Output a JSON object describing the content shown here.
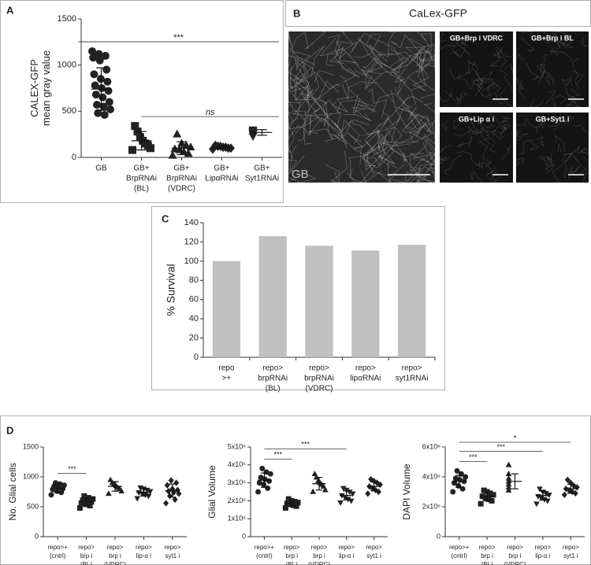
{
  "image_panel": {
    "panel": "B",
    "title": "CaLex-GFP",
    "images": [
      "GB",
      "GB+Brp i VDRC",
      "GB+Brp i BL",
      "GB+Lip α i",
      "GB+Syt1 i"
    ]
  },
  "chart_data": [
    {
      "panel": "A",
      "type": "dotplot",
      "ylabel": [
        "CALEX-GFP",
        "mean gray value"
      ],
      "ylim": [
        0,
        1500
      ],
      "yticks": [
        0,
        500,
        1000,
        1500
      ],
      "color": "#222222",
      "groups": [
        {
          "label": [
            "GB"
          ],
          "marker": "circle",
          "values": [
            1150,
            1120,
            1100,
            1080,
            1050,
            950,
            900,
            850,
            820,
            780,
            750,
            720,
            680,
            650,
            600,
            570,
            550,
            520,
            480,
            460
          ],
          "mean": 740,
          "sd": 230
        },
        {
          "label": [
            "GB+",
            "BrpRNAi",
            "(BL)"
          ],
          "marker": "square",
          "values": [
            80,
            100,
            130,
            150,
            180,
            220,
            280,
            340
          ],
          "mean": 180,
          "sd": 100
        },
        {
          "label": [
            "GB+",
            "BrpRNAi",
            "(VDRC)"
          ],
          "marker": "triangle",
          "values": [
            20,
            40,
            60,
            80,
            90,
            110,
            130,
            150,
            250
          ],
          "mean": 100,
          "sd": 70
        },
        {
          "label": [
            "GB+",
            "LipαRNAi"
          ],
          "marker": "diamond",
          "values": [
            90,
            100,
            100,
            110,
            110,
            120,
            120,
            130
          ],
          "mean": 110,
          "sd": 15
        },
        {
          "label": [
            "GB+",
            "Syt1RNAi"
          ],
          "marker": "triangle-down",
          "values": [
            230,
            250,
            260,
            270,
            280,
            290,
            300
          ],
          "mean": 270,
          "sd": 30
        }
      ],
      "significance": [
        {
          "label": "ns",
          "groups": [
            1,
            4
          ]
        },
        {
          "label": "***",
          "groups": [
            0,
            4
          ]
        }
      ]
    },
    {
      "panel": "C",
      "type": "bar",
      "ylabel": "% Survival",
      "color": "#c0c0c0",
      "ylim": [
        0,
        140
      ],
      "yticks": [
        0,
        20,
        40,
        60,
        80,
        100,
        120,
        140
      ],
      "categories": [
        [
          "repo",
          ">+"
        ],
        [
          "repo>",
          "brpRNAi",
          "(BL)"
        ],
        [
          "repo>",
          "brpRNAi",
          "(VDRC)"
        ],
        [
          "repo>",
          "lipαRNAi"
        ],
        [
          "repo>",
          "syt1RNAi"
        ]
      ],
      "values": [
        100,
        126,
        116,
        111,
        117
      ]
    },
    {
      "panel": "D",
      "type": "dotplot",
      "ylabel": "No. Glial cells",
      "ylim": [
        0,
        1500
      ],
      "yticks": [
        0,
        500,
        1000,
        1500
      ],
      "color": "#222222",
      "groups": [
        {
          "label": [
            "repo>+",
            "(cntrl)"
          ],
          "marker": "circle",
          "values": [
            700,
            740,
            760,
            790,
            800,
            820,
            840,
            860,
            880,
            900
          ],
          "mean": 810,
          "sd": 70
        },
        {
          "label": [
            "repo>",
            "brp i",
            "(BL)"
          ],
          "marker": "square",
          "values": [
            480,
            520,
            540,
            560,
            580,
            600,
            610,
            630,
            650,
            680
          ],
          "mean": 585,
          "sd": 60
        },
        {
          "label": [
            "repo>",
            "brp i",
            "(VDRC)"
          ],
          "marker": "triangle",
          "values": [
            720,
            760,
            800,
            820,
            850,
            880,
            900,
            950
          ],
          "mean": 840,
          "sd": 80
        },
        {
          "label": [
            "repo>",
            "lip-α i"
          ],
          "marker": "triangle-down",
          "values": [
            640,
            680,
            700,
            720,
            740,
            760,
            780,
            800,
            820
          ],
          "mean": 740,
          "sd": 60
        },
        {
          "label": [
            "repo>",
            "syt1 i"
          ],
          "marker": "diamond",
          "values": [
            560,
            620,
            680,
            720,
            740,
            760,
            780,
            800,
            860,
            900,
            940
          ],
          "mean": 770,
          "sd": 110
        }
      ],
      "significance": [
        {
          "label": "***",
          "groups": [
            0,
            1
          ]
        }
      ]
    },
    {
      "type": "dotplot",
      "ylabel": "Glial Volume",
      "ylim": [
        0,
        5000000
      ],
      "color": "#222222",
      "yticks": [
        0,
        {
          "value": 1000000,
          "label": "1x10⁶"
        },
        {
          "value": 2000000,
          "label": "2x10⁶"
        },
        {
          "value": 3000000,
          "label": "3x10⁶"
        },
        {
          "value": 4000000,
          "label": "4x10⁶"
        },
        {
          "value": 5000000,
          "label": "5x10⁶"
        }
      ],
      "groups": [
        {
          "label": [
            "repo>+",
            "(cntrl)"
          ],
          "marker": "circle",
          "values": [
            2500000,
            2700000,
            2900000,
            3000000,
            3100000,
            3200000,
            3300000,
            3500000,
            3600000,
            3800000
          ],
          "mean": 3150000,
          "sd": 400000
        },
        {
          "label": [
            "repo>",
            "brp i",
            "(BL)"
          ],
          "marker": "square",
          "values": [
            1600000,
            1700000,
            1750000,
            1800000,
            1850000,
            1900000,
            1950000,
            2000000,
            2100000
          ],
          "mean": 1850000,
          "sd": 150000
        },
        {
          "label": [
            "repo>",
            "brp i",
            "(VDRC)"
          ],
          "marker": "triangle",
          "values": [
            2500000,
            2600000,
            2800000,
            2900000,
            3000000,
            3100000,
            3300000,
            3500000
          ],
          "mean": 2950000,
          "sd": 350000
        },
        {
          "label": [
            "repo>",
            "lip-α i"
          ],
          "marker": "triangle-down",
          "values": [
            1900000,
            2000000,
            2100000,
            2200000,
            2300000,
            2400000,
            2500000,
            2600000,
            2700000
          ],
          "mean": 2300000,
          "sd": 250000
        },
        {
          "label": [
            "repo>",
            "syt1 i"
          ],
          "marker": "diamond",
          "values": [
            2400000,
            2500000,
            2600000,
            2700000,
            2800000,
            2900000,
            3000000,
            3100000,
            3200000
          ],
          "mean": 2800000,
          "sd": 250000
        }
      ],
      "significance": [
        {
          "label": "***",
          "groups": [
            0,
            1
          ]
        },
        {
          "label": "***",
          "groups": [
            0,
            3
          ]
        }
      ]
    },
    {
      "type": "dotplot",
      "ylabel": "DAPI Volume",
      "ylim": [
        0,
        6000000
      ],
      "color": "#222222",
      "yticks": [
        0,
        {
          "value": 2000000,
          "label": "2x10⁶"
        },
        {
          "value": 4000000,
          "label": "4x10⁶"
        },
        {
          "value": 6000000,
          "label": "6x10⁶"
        }
      ],
      "groups": [
        {
          "label": [
            "repo>+",
            "(cntrl)"
          ],
          "marker": "circle",
          "values": [
            3000000,
            3200000,
            3400000,
            3600000,
            3700000,
            3800000,
            3900000,
            4000000,
            4200000,
            4400000
          ],
          "mean": 3700000,
          "sd": 400000
        },
        {
          "label": [
            "repo>",
            "brp i",
            "(BL)"
          ],
          "marker": "square",
          "values": [
            2200000,
            2400000,
            2500000,
            2600000,
            2700000,
            2800000,
            2900000,
            3000000,
            3100000
          ],
          "mean": 2700000,
          "sd": 300000
        },
        {
          "label": [
            "repo>",
            "brp i",
            "(VDRC)"
          ],
          "marker": "triangle",
          "values": [
            3100000,
            3300000,
            3500000,
            3700000,
            3900000,
            4200000,
            4800000
          ],
          "mean": 3700000,
          "sd": 500000
        },
        {
          "label": [
            "repo>",
            "lip-α i"
          ],
          "marker": "triangle-down",
          "values": [
            2200000,
            2400000,
            2500000,
            2600000,
            2700000,
            2800000,
            2900000,
            3000000,
            3200000
          ],
          "mean": 2750000,
          "sd": 300000
        },
        {
          "label": [
            "repo>",
            "syt1 i"
          ],
          "marker": "diamond",
          "values": [
            2800000,
            2900000,
            3000000,
            3100000,
            3200000,
            3300000,
            3400000,
            3600000,
            3800000
          ],
          "mean": 3200000,
          "sd": 300000
        }
      ],
      "significance": [
        {
          "label": "***",
          "groups": [
            0,
            1
          ]
        },
        {
          "label": "***",
          "groups": [
            0,
            3
          ]
        },
        {
          "label": "*",
          "groups": [
            0,
            4
          ]
        }
      ]
    }
  ]
}
